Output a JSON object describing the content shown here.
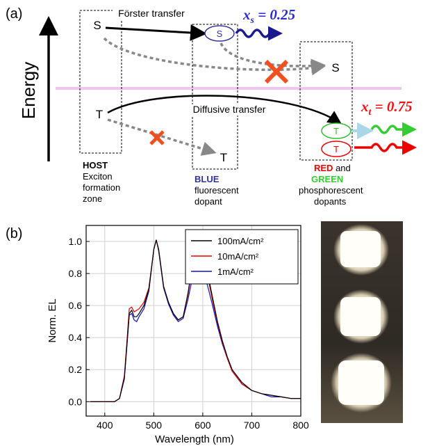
{
  "diagram": {
    "panel_label": "(a)",
    "axis_label": "Energy",
    "host_singlet": "S",
    "forster_label": "Förster transfer",
    "blue_singlet": "S",
    "xs": {
      "var": "x",
      "sub": "s",
      "rest": " = 0.25"
    },
    "dopant_singlet": "S",
    "host_triplet": "T",
    "diffusive_label": "Diffusive transfer",
    "xt": {
      "var": "x",
      "sub": "t",
      "rest": " = 0.75"
    },
    "blue_triplet": "T",
    "green_triplet": "T",
    "red_triplet": "T",
    "host": {
      "title": "HOST",
      "lines": [
        "Exciton",
        "formation",
        "zone"
      ]
    },
    "blue": {
      "title": "BLUE",
      "lines": [
        "fluorescent",
        "dopant"
      ]
    },
    "redgreen": {
      "red": "RED",
      "and": " and",
      "green": "GREEN",
      "lines": [
        "phosphorescent",
        "dopants"
      ]
    }
  },
  "chart_data": {
    "type": "line",
    "panel_label": "(b)",
    "x_label": "Wavelength (nm)",
    "y_label": "Norm. EL",
    "x": [
      370,
      400,
      420,
      430,
      440,
      445,
      450,
      455,
      460,
      465,
      470,
      480,
      490,
      500,
      505,
      510,
      520,
      530,
      540,
      550,
      560,
      570,
      580,
      590,
      595,
      600,
      610,
      620,
      630,
      640,
      650,
      660,
      680,
      700,
      720,
      740,
      760,
      780,
      800
    ],
    "series": [
      {
        "name": "100mA/cm²",
        "color": "#000000",
        "values": [
          0,
          0,
          0,
          0.02,
          0.15,
          0.35,
          0.55,
          0.57,
          0.53,
          0.53,
          0.55,
          0.6,
          0.7,
          0.95,
          1.01,
          0.95,
          0.72,
          0.62,
          0.55,
          0.51,
          0.53,
          0.68,
          0.88,
          0.96,
          0.97,
          0.94,
          0.8,
          0.65,
          0.5,
          0.38,
          0.28,
          0.2,
          0.12,
          0.07,
          0.05,
          0.04,
          0.03,
          0.02,
          0.02
        ]
      },
      {
        "name": "10mA/cm²",
        "color": "#e00000",
        "values": [
          0,
          0,
          0,
          0.02,
          0.16,
          0.37,
          0.58,
          0.59,
          0.56,
          0.57,
          0.58,
          0.62,
          0.71,
          0.95,
          1.01,
          0.95,
          0.72,
          0.62,
          0.55,
          0.51,
          0.53,
          0.67,
          0.86,
          0.93,
          0.93,
          0.91,
          0.78,
          0.63,
          0.49,
          0.37,
          0.27,
          0.19,
          0.11,
          0.07,
          0.05,
          0.04,
          0.03,
          0.02,
          0.02
        ]
      },
      {
        "name": "1mA/cm²",
        "color": "#1010c0",
        "values": [
          0,
          0,
          0,
          0.02,
          0.14,
          0.34,
          0.54,
          0.55,
          0.51,
          0.5,
          0.53,
          0.58,
          0.69,
          0.95,
          1.01,
          0.94,
          0.71,
          0.61,
          0.54,
          0.5,
          0.52,
          0.64,
          0.79,
          0.85,
          0.85,
          0.82,
          0.72,
          0.6,
          0.47,
          0.36,
          0.27,
          0.19,
          0.11,
          0.07,
          0.05,
          0.03,
          0.03,
          0.02,
          0.02
        ]
      }
    ],
    "xlim": [
      362,
      800
    ],
    "ylim": [
      -0.09,
      1.1
    ],
    "xticks": [
      400,
      500,
      600,
      700,
      800
    ],
    "yticks": [
      {
        "value": 0,
        "label": "0.0"
      },
      0.2,
      0.4,
      0.6,
      0.8,
      {
        "value": 1,
        "label": "1.0"
      }
    ],
    "grid": true,
    "legend": "top-right"
  }
}
